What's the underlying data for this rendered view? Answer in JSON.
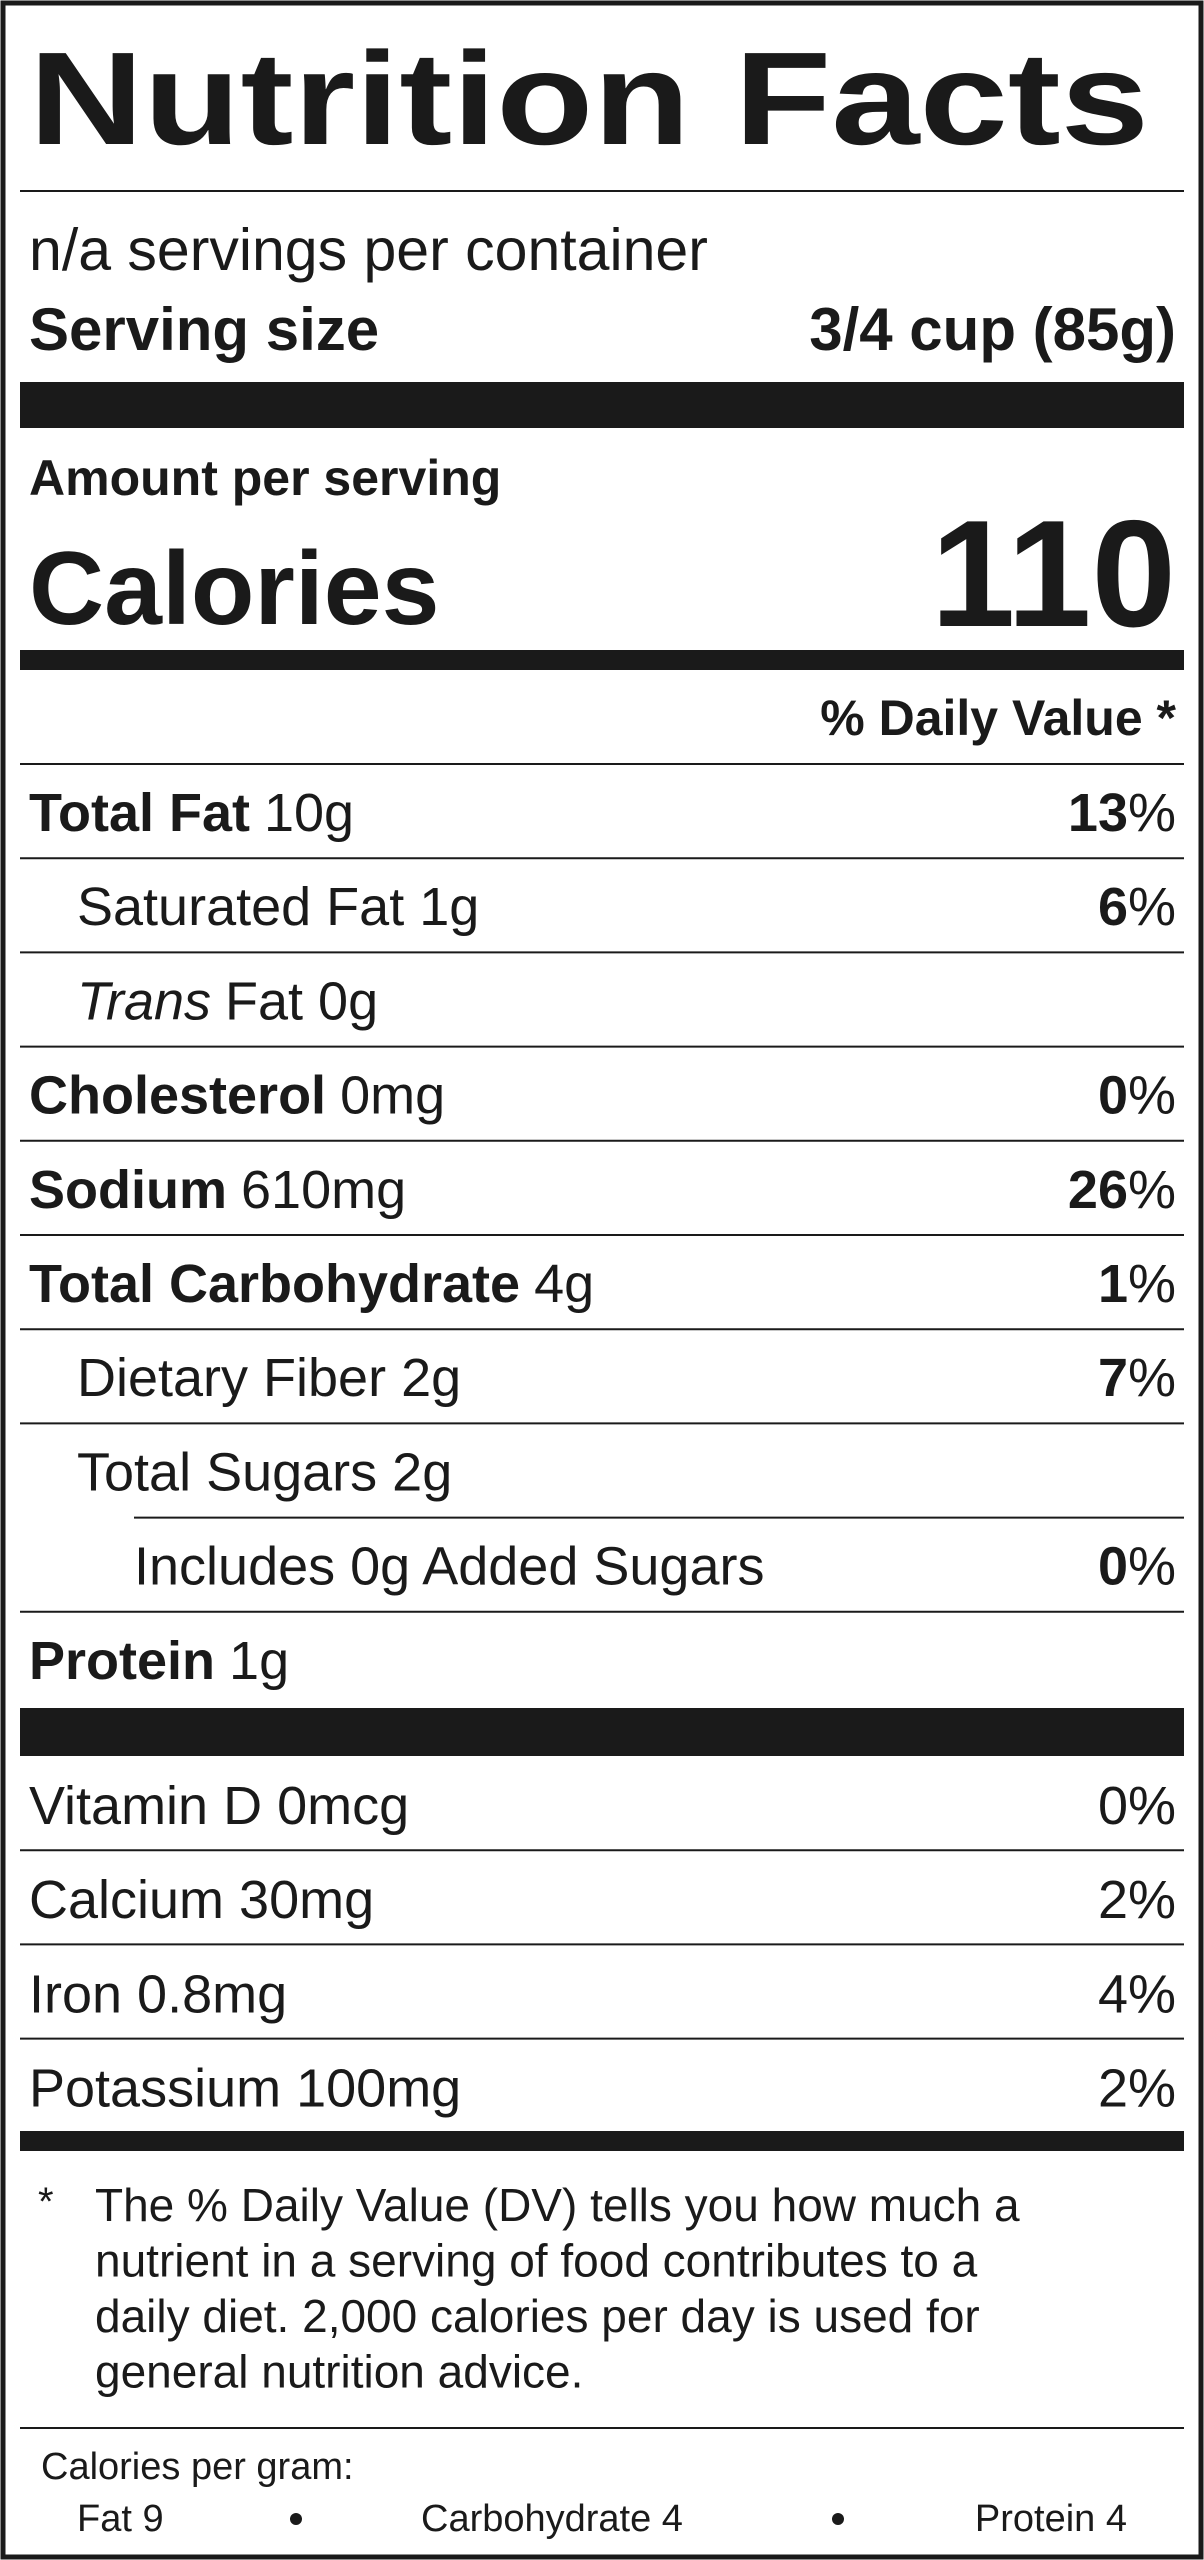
{
  "title": "Nutrition Facts",
  "servings": "n/a servings per container",
  "serving_size": {
    "label": "Serving size",
    "value": "3/4 cup (85g)"
  },
  "amount_per_serving": "Amount per serving",
  "calories": {
    "label": "Calories",
    "value": "110"
  },
  "daily_value_header": "% Daily Value *",
  "nutrients": [
    {
      "label": "Total Fat",
      "amount": "10g",
      "dv": "13",
      "pct": "%",
      "bold": true,
      "indent": 0
    },
    {
      "label": "Saturated Fat 1g",
      "dv": "6",
      "pct": "%",
      "indent": 1
    },
    {
      "label": "Trans",
      "amount": "Fat 0g",
      "italic": true,
      "indent": 1
    },
    {
      "label": "Cholesterol",
      "amount": "0mg",
      "dv": "0",
      "pct": "%",
      "bold": true,
      "indent": 0
    },
    {
      "label": "Sodium",
      "amount": "610mg",
      "dv": "26",
      "pct": "%",
      "bold": true,
      "indent": 0
    },
    {
      "label": "Total Carbohydrate",
      "amount": "4g",
      "dv": "1",
      "pct": "%",
      "bold": true,
      "indent": 0
    },
    {
      "label": "Dietary Fiber 2g",
      "dv": "7",
      "pct": "%",
      "indent": 1
    },
    {
      "label": "Total Sugars 2g",
      "indent": 1
    },
    {
      "label": "Includes 0g Added Sugars",
      "dv": "0",
      "pct": "%",
      "indent": 2
    },
    {
      "label": "Protein",
      "amount": "1g",
      "bold": true,
      "indent": 0
    }
  ],
  "vitamins": [
    {
      "label": "Vitamin D 0mcg",
      "dv": "0%"
    },
    {
      "label": "Calcium 30mg",
      "dv": "2%"
    },
    {
      "label": "Iron 0.8mg",
      "dv": "4%"
    },
    {
      "label": "Potassium 100mg",
      "dv": "2%"
    }
  ],
  "footnote": {
    "star": "*",
    "lines": [
      "The % Daily Value (DV) tells you how much a",
      "nutrient in a serving of food contributes to a",
      "daily diet. 2,000 calories per day is used for",
      "general nutrition advice."
    ]
  },
  "calories_per_gram": {
    "label": "Calories per gram:",
    "items": [
      "Fat 9",
      "Carbohydrate 4",
      "Protein 4"
    ]
  }
}
